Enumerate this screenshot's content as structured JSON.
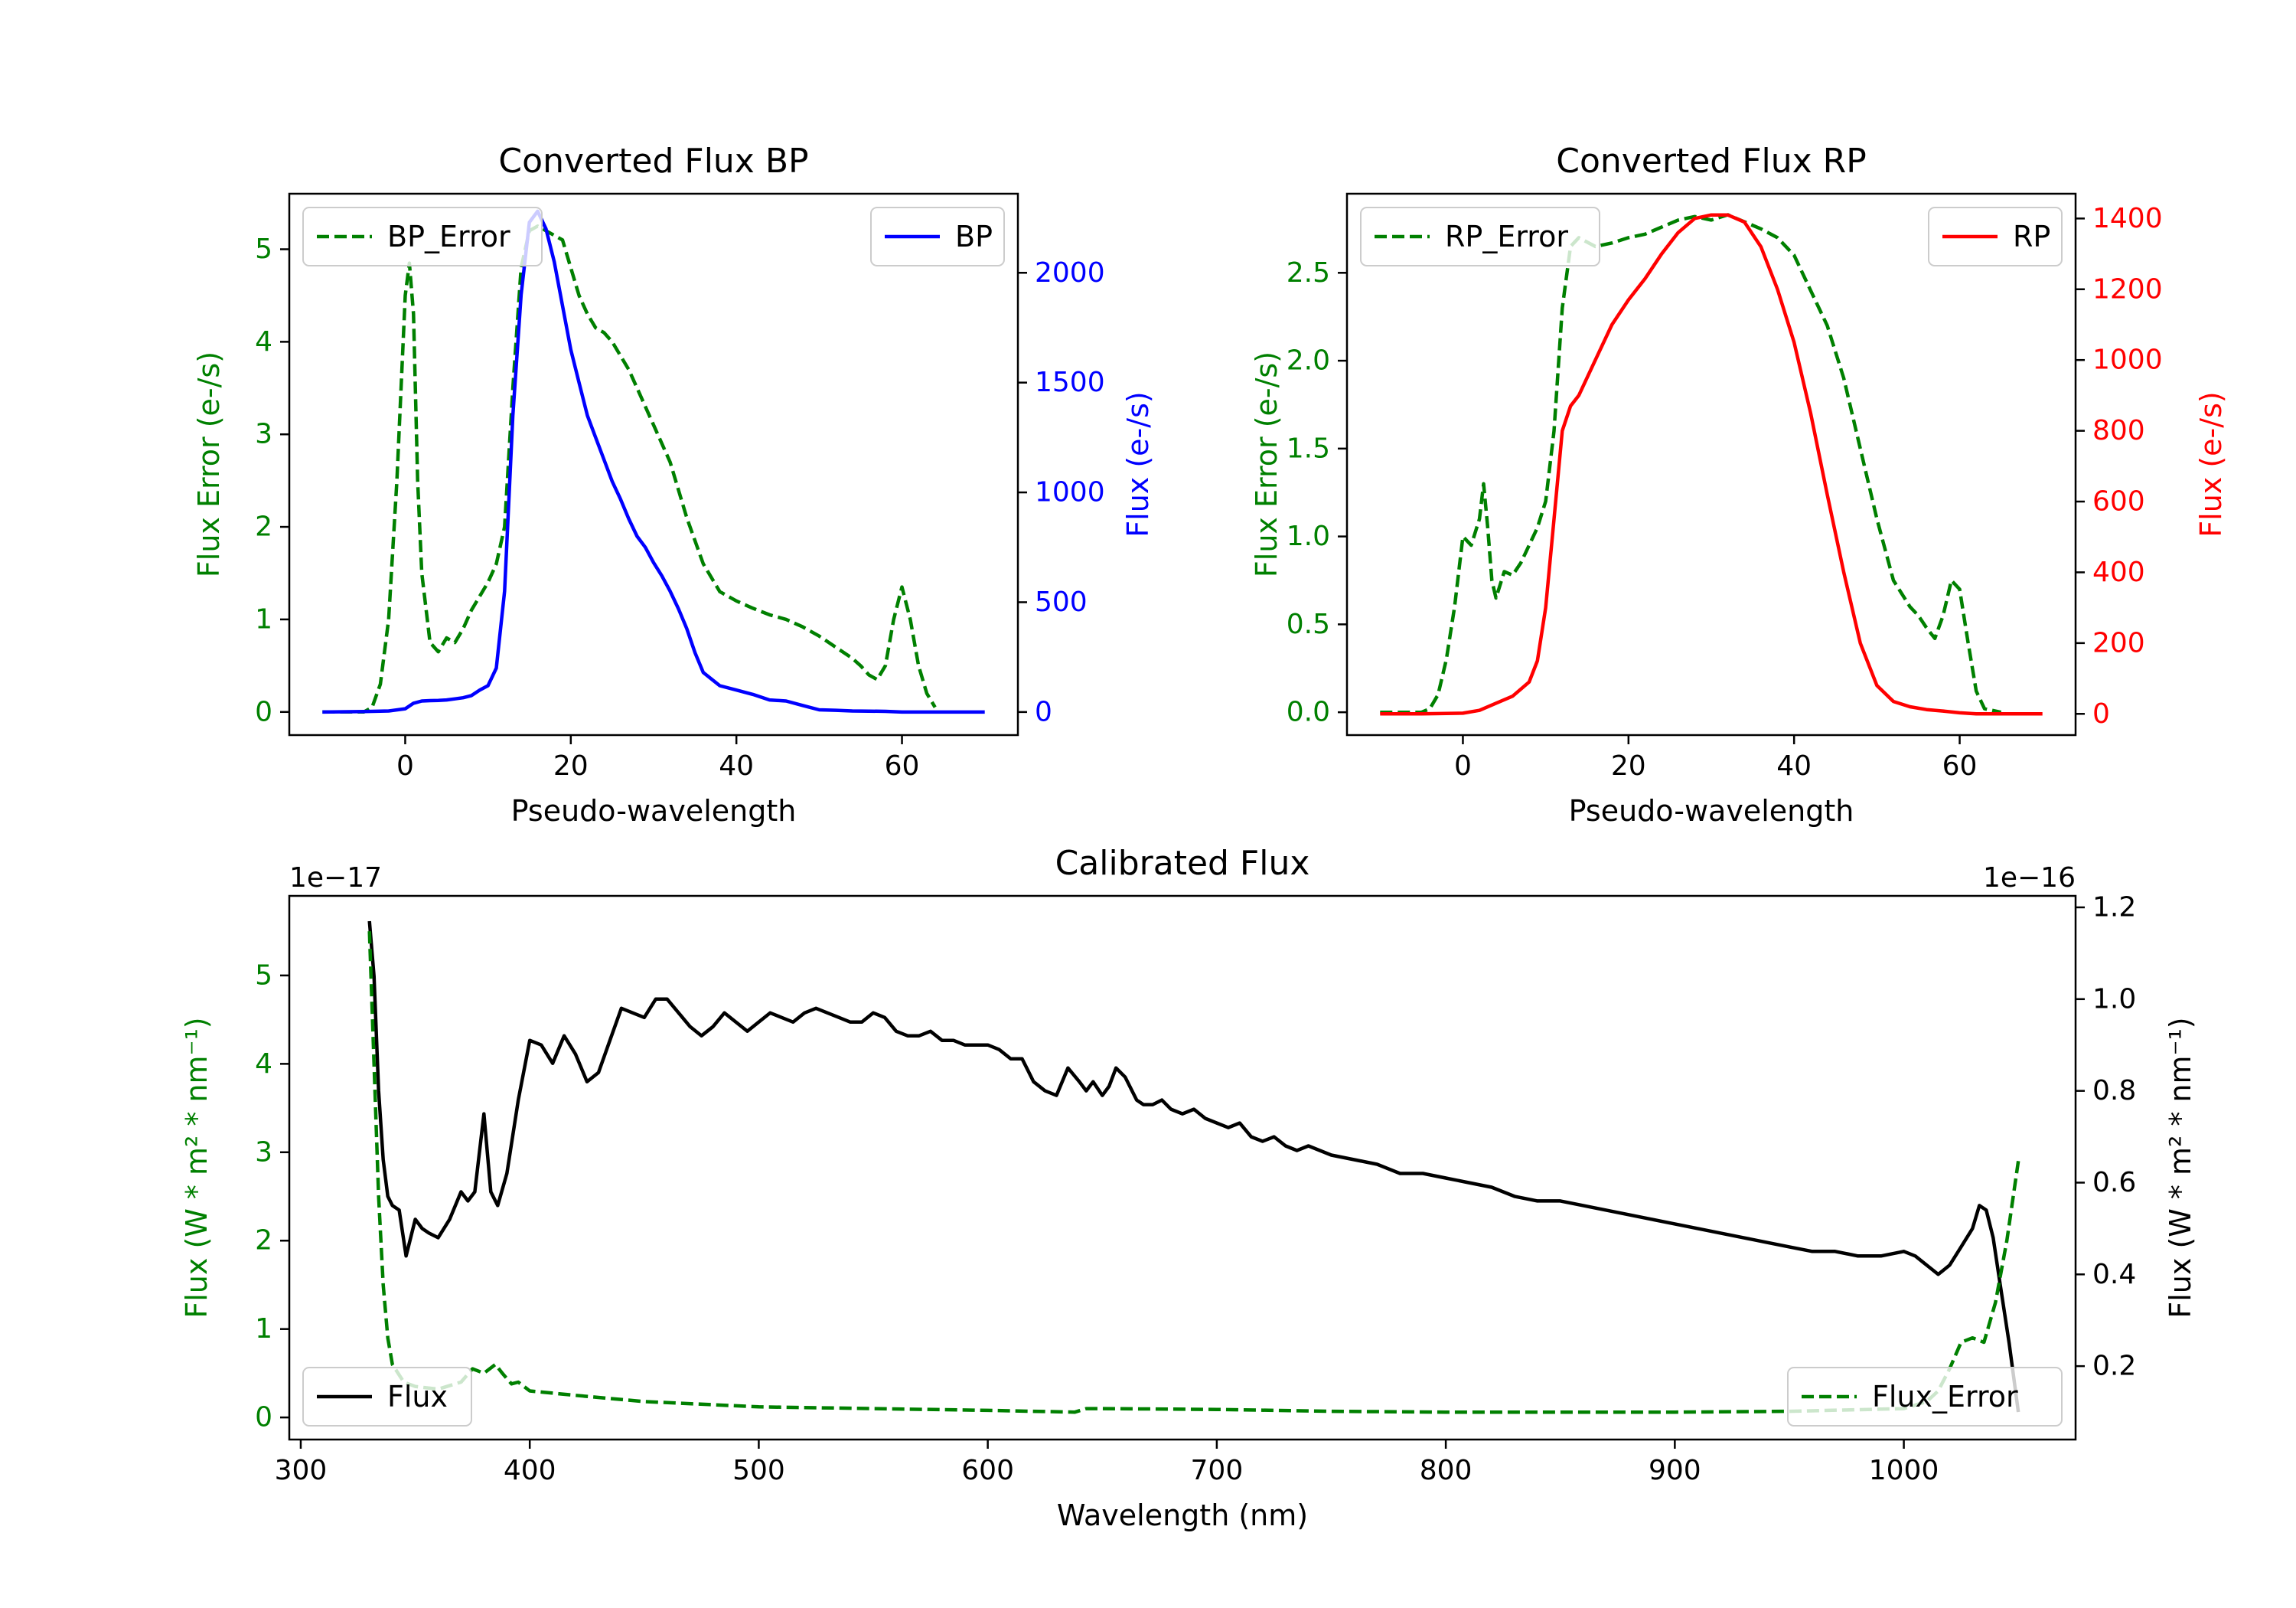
{
  "colors": {
    "error": "#008000",
    "bp": "#0000ff",
    "rp": "#ff0000",
    "flux": "#000000"
  },
  "chart_data": [
    {
      "id": "bp",
      "type": "line",
      "title": "Converted Flux BP",
      "xlabel": "Pseudo-wavelength",
      "ylabel_left": "Flux Error (e-/s)",
      "ylabel_right": "Flux (e-/s)",
      "xlim": [
        -14,
        74
      ],
      "ylim_left": [
        -0.25,
        5.6
      ],
      "ylim_right": [
        -105,
        2360
      ],
      "xticks": [
        0,
        20,
        40,
        60
      ],
      "yticks_left": [
        0,
        1,
        2,
        3,
        4,
        5
      ],
      "yticks_right": [
        0,
        500,
        1000,
        1500,
        2000
      ],
      "legend_left": "BP_Error",
      "legend_right": "BP",
      "series": [
        {
          "name": "BP_Error",
          "axis": "left",
          "style": "dashed",
          "color": "#008000",
          "x": [
            -10,
            -5,
            -4,
            -3,
            -2,
            -1,
            0,
            0.5,
            1,
            1.5,
            2,
            3,
            4,
            5,
            6,
            7,
            8,
            9,
            10,
            11,
            12,
            13,
            14,
            15,
            16,
            17,
            18,
            19,
            20,
            21,
            22,
            23,
            24,
            25,
            26,
            27,
            28,
            30,
            32,
            34,
            36,
            38,
            40,
            42,
            44,
            46,
            48,
            50,
            52,
            54,
            55,
            56,
            57,
            58,
            59,
            60,
            61,
            62,
            63,
            64
          ],
          "y": [
            0,
            0,
            0.05,
            0.3,
            1.0,
            2.5,
            4.5,
            4.85,
            4.3,
            2.5,
            1.5,
            0.75,
            0.65,
            0.8,
            0.75,
            0.9,
            1.1,
            1.25,
            1.4,
            1.6,
            2.0,
            3.5,
            4.8,
            5.2,
            5.25,
            5.2,
            5.15,
            5.1,
            4.8,
            4.5,
            4.3,
            4.15,
            4.1,
            4.0,
            3.85,
            3.7,
            3.5,
            3.1,
            2.7,
            2.1,
            1.6,
            1.3,
            1.2,
            1.12,
            1.05,
            1.0,
            0.92,
            0.82,
            0.7,
            0.58,
            0.5,
            0.4,
            0.35,
            0.5,
            1.0,
            1.35,
            1.0,
            0.5,
            0.2,
            0.05
          ]
        },
        {
          "name": "BP",
          "axis": "right",
          "style": "solid",
          "color": "#0000ff",
          "x": [
            -10,
            -5,
            -2,
            0,
            1,
            2,
            3,
            4,
            5,
            6,
            7,
            8,
            9,
            10,
            11,
            12,
            13,
            14,
            15,
            16,
            17,
            18,
            19,
            20,
            21,
            22,
            23,
            24,
            25,
            26,
            27,
            28,
            29,
            30,
            31,
            32,
            33,
            34,
            35,
            36,
            38,
            40,
            42,
            44,
            46,
            48,
            50,
            52,
            54,
            56,
            58,
            60,
            62,
            64,
            66,
            70
          ],
          "y": [
            0,
            2,
            5,
            15,
            40,
            50,
            52,
            53,
            55,
            60,
            65,
            75,
            100,
            120,
            200,
            550,
            1350,
            1900,
            2230,
            2280,
            2200,
            2050,
            1850,
            1650,
            1500,
            1350,
            1250,
            1150,
            1050,
            970,
            880,
            800,
            750,
            680,
            620,
            550,
            470,
            380,
            270,
            180,
            120,
            100,
            80,
            55,
            50,
            30,
            10,
            8,
            5,
            4,
            3,
            0,
            0,
            0,
            0,
            0
          ]
        }
      ]
    },
    {
      "id": "rp",
      "type": "line",
      "title": "Converted Flux RP",
      "xlabel": "Pseudo-wavelength",
      "ylabel_left": "Flux Error (e-/s)",
      "ylabel_right": "Flux (e-/s)",
      "xlim": [
        -14,
        74
      ],
      "ylim_left": [
        -0.13,
        2.95
      ],
      "ylim_right": [
        -60,
        1470
      ],
      "xticks": [
        0,
        20,
        40,
        60
      ],
      "yticks_left": [
        0.0,
        0.5,
        1.0,
        1.5,
        2.0,
        2.5
      ],
      "yticks_right": [
        0,
        200,
        400,
        600,
        800,
        1000,
        1200,
        1400
      ],
      "legend_left": "RP_Error",
      "legend_right": "RP",
      "series": [
        {
          "name": "RP_Error",
          "axis": "left",
          "style": "dashed",
          "color": "#008000",
          "x": [
            -10,
            -5,
            -4,
            -3,
            -2,
            -1,
            0,
            1,
            2,
            2.5,
            3,
            3.5,
            4,
            5,
            6,
            7,
            8,
            9,
            10,
            11,
            12,
            13,
            14,
            16,
            18,
            20,
            22,
            24,
            26,
            28,
            30,
            32,
            34,
            36,
            38,
            40,
            42,
            44,
            46,
            48,
            50,
            52,
            54,
            55,
            56,
            57,
            58,
            59,
            60,
            61,
            62,
            63,
            65
          ],
          "y": [
            0,
            0,
            0.02,
            0.1,
            0.3,
            0.6,
            1.0,
            0.95,
            1.1,
            1.3,
            1.05,
            0.75,
            0.65,
            0.8,
            0.78,
            0.85,
            0.95,
            1.05,
            1.2,
            1.6,
            2.3,
            2.65,
            2.7,
            2.65,
            2.67,
            2.7,
            2.72,
            2.76,
            2.8,
            2.82,
            2.8,
            2.83,
            2.79,
            2.75,
            2.7,
            2.6,
            2.4,
            2.2,
            1.9,
            1.5,
            1.1,
            0.75,
            0.6,
            0.55,
            0.48,
            0.42,
            0.55,
            0.75,
            0.7,
            0.4,
            0.12,
            0.02,
            0
          ]
        },
        {
          "name": "RP",
          "axis": "right",
          "style": "solid",
          "color": "#ff0000",
          "x": [
            -10,
            -5,
            0,
            2,
            4,
            6,
            8,
            9,
            10,
            11,
            12,
            13,
            14,
            16,
            18,
            20,
            22,
            24,
            26,
            28,
            30,
            32,
            34,
            36,
            38,
            40,
            42,
            44,
            46,
            48,
            50,
            52,
            54,
            56,
            58,
            60,
            62,
            65,
            70
          ],
          "y": [
            0,
            0,
            2,
            10,
            30,
            50,
            90,
            150,
            300,
            550,
            800,
            870,
            900,
            1000,
            1100,
            1170,
            1230,
            1300,
            1360,
            1400,
            1410,
            1410,
            1390,
            1320,
            1200,
            1050,
            850,
            620,
            400,
            200,
            80,
            35,
            20,
            12,
            8,
            3,
            0,
            0,
            0
          ]
        }
      ]
    },
    {
      "id": "cal",
      "type": "line",
      "title": "Calibrated Flux",
      "xlabel": "Wavelength (nm)",
      "ylabel_left": "Flux (W * m² * nm⁻¹)",
      "ylabel_right": "Flux (W * m² * nm⁻¹)",
      "offset_left": "1e−17",
      "offset_right": "1e−16",
      "xlim": [
        295,
        1075
      ],
      "ylim_left": [
        -0.25,
        5.9
      ],
      "ylim_right": [
        0.04,
        1.225
      ],
      "xticks": [
        300,
        400,
        500,
        600,
        700,
        800,
        900,
        1000
      ],
      "yticks_left": [
        0,
        1,
        2,
        3,
        4,
        5
      ],
      "yticks_right": [
        0.2,
        0.4,
        0.6,
        0.8,
        1.0,
        1.2
      ],
      "legend_left": "Flux",
      "legend_right": "Flux_Error",
      "series": [
        {
          "name": "Flux",
          "axis": "right",
          "style": "solid",
          "color": "#000000",
          "x": [
            330,
            332,
            334,
            336,
            338,
            340,
            343,
            346,
            350,
            353,
            356,
            360,
            365,
            370,
            373,
            376,
            380,
            383,
            386,
            390,
            395,
            400,
            405,
            410,
            415,
            420,
            425,
            430,
            435,
            440,
            445,
            450,
            455,
            460,
            465,
            470,
            475,
            480,
            485,
            490,
            495,
            500,
            505,
            510,
            515,
            520,
            525,
            530,
            535,
            540,
            545,
            550,
            555,
            560,
            565,
            570,
            575,
            580,
            585,
            590,
            595,
            600,
            605,
            610,
            615,
            620,
            625,
            630,
            635,
            640,
            643,
            646,
            650,
            653,
            656,
            660,
            665,
            668,
            672,
            676,
            680,
            685,
            690,
            695,
            700,
            705,
            710,
            715,
            720,
            725,
            730,
            735,
            740,
            745,
            750,
            760,
            770,
            780,
            790,
            800,
            810,
            820,
            830,
            840,
            850,
            860,
            870,
            880,
            890,
            900,
            910,
            920,
            930,
            940,
            950,
            960,
            970,
            980,
            990,
            1000,
            1005,
            1010,
            1015,
            1020,
            1025,
            1030,
            1033,
            1036,
            1039,
            1042,
            1046,
            1050
          ],
          "y": [
            1.17,
            1.05,
            0.8,
            0.65,
            0.57,
            0.55,
            0.54,
            0.44,
            0.52,
            0.5,
            0.49,
            0.48,
            0.52,
            0.58,
            0.56,
            0.58,
            0.75,
            0.58,
            0.55,
            0.62,
            0.78,
            0.91,
            0.9,
            0.86,
            0.92,
            0.88,
            0.82,
            0.84,
            0.91,
            0.98,
            0.97,
            0.96,
            1.0,
            1.0,
            0.97,
            0.94,
            0.92,
            0.94,
            0.97,
            0.95,
            0.93,
            0.95,
            0.97,
            0.96,
            0.95,
            0.97,
            0.98,
            0.97,
            0.96,
            0.95,
            0.95,
            0.97,
            0.96,
            0.93,
            0.92,
            0.92,
            0.93,
            0.91,
            0.91,
            0.9,
            0.9,
            0.9,
            0.89,
            0.87,
            0.87,
            0.82,
            0.8,
            0.79,
            0.85,
            0.82,
            0.8,
            0.82,
            0.79,
            0.81,
            0.85,
            0.83,
            0.78,
            0.77,
            0.77,
            0.78,
            0.76,
            0.75,
            0.76,
            0.74,
            0.73,
            0.72,
            0.73,
            0.7,
            0.69,
            0.7,
            0.68,
            0.67,
            0.68,
            0.67,
            0.66,
            0.65,
            0.64,
            0.62,
            0.62,
            0.61,
            0.6,
            0.59,
            0.57,
            0.56,
            0.56,
            0.55,
            0.54,
            0.53,
            0.52,
            0.51,
            0.5,
            0.49,
            0.48,
            0.47,
            0.46,
            0.45,
            0.45,
            0.44,
            0.44,
            0.45,
            0.44,
            0.42,
            0.4,
            0.42,
            0.46,
            0.5,
            0.55,
            0.54,
            0.48,
            0.38,
            0.25,
            0.1
          ]
        },
        {
          "name": "Flux_Error",
          "axis": "left",
          "style": "dashed",
          "color": "#008000",
          "x": [
            330,
            332,
            334,
            336,
            338,
            340,
            345,
            350,
            360,
            370,
            375,
            380,
            385,
            388,
            392,
            395,
            400,
            420,
            450,
            500,
            550,
            600,
            638,
            643,
            650,
            700,
            750,
            800,
            850,
            900,
            950,
            1000,
            1010,
            1015,
            1020,
            1025,
            1030,
            1035,
            1040,
            1045,
            1050
          ],
          "y": [
            5.5,
            4.0,
            2.5,
            1.5,
            0.9,
            0.6,
            0.4,
            0.35,
            0.32,
            0.4,
            0.55,
            0.5,
            0.6,
            0.5,
            0.38,
            0.4,
            0.3,
            0.25,
            0.18,
            0.12,
            0.1,
            0.08,
            0.06,
            0.1,
            0.1,
            0.09,
            0.07,
            0.06,
            0.06,
            0.06,
            0.07,
            0.1,
            0.18,
            0.3,
            0.55,
            0.85,
            0.9,
            0.85,
            1.3,
            2.0,
            2.9
          ]
        }
      ]
    }
  ]
}
